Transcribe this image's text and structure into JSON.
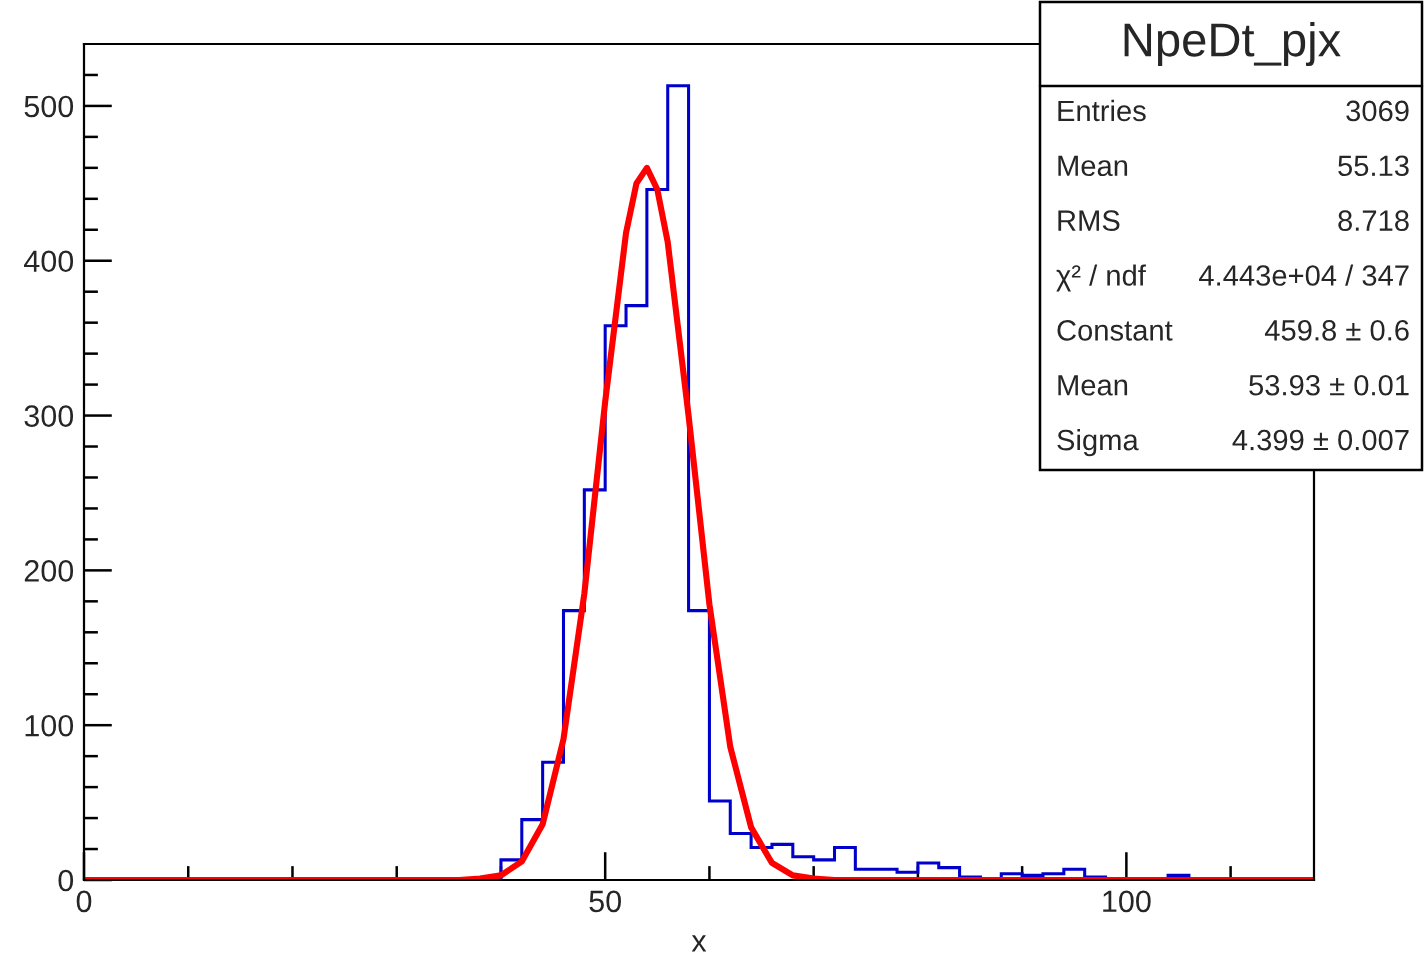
{
  "chart_data": {
    "type": "histogram",
    "title": "NpeDt_pjx",
    "xlabel": "x",
    "xlim": [
      0,
      118
    ],
    "xticks": [
      0,
      {
        "value": 10,
        "label": null
      },
      {
        "value": 20,
        "label": null
      },
      {
        "value": 30,
        "label": null
      },
      {
        "value": 40,
        "label": null
      },
      50,
      {
        "value": 60,
        "label": null
      },
      {
        "value": 70,
        "label": null
      },
      {
        "value": 80,
        "label": null
      },
      {
        "value": 90,
        "label": null
      },
      100,
      {
        "value": 110,
        "label": null
      }
    ],
    "ylim": [
      0,
      540
    ],
    "yticks": [
      0,
      {
        "value": 20,
        "label": null
      },
      {
        "value": 40,
        "label": null
      },
      {
        "value": 60,
        "label": null
      },
      {
        "value": 80,
        "label": null
      },
      100,
      {
        "value": 120,
        "label": null
      },
      {
        "value": 140,
        "label": null
      },
      {
        "value": 160,
        "label": null
      },
      {
        "value": 180,
        "label": null
      },
      200,
      {
        "value": 220,
        "label": null
      },
      {
        "value": 240,
        "label": null
      },
      {
        "value": 260,
        "label": null
      },
      {
        "value": 280,
        "label": null
      },
      300,
      {
        "value": 320,
        "label": null
      },
      {
        "value": 340,
        "label": null
      },
      {
        "value": 360,
        "label": null
      },
      {
        "value": 380,
        "label": null
      },
      400,
      {
        "value": 420,
        "label": null
      },
      {
        "value": 440,
        "label": null
      },
      {
        "value": 460,
        "label": null
      },
      {
        "value": 480,
        "label": null
      },
      500,
      {
        "value": 520,
        "label": null
      }
    ],
    "grid": false,
    "legend": false,
    "annotations": [
      "Entries",
      "3069",
      "Mean",
      "55.13",
      "RMS",
      "8.718",
      "χ² / ndf",
      "4.443e+04 / 347",
      "Constant",
      "459.8 ± 0.6",
      "Mean",
      "53.93 ± 0.01",
      "Sigma",
      "4.399 ± 0.007"
    ],
    "series": [
      {
        "color": "#0000cc",
        "bins": [
          0,
          2,
          4,
          6,
          8,
          10,
          12,
          14,
          16,
          18,
          20,
          22,
          24,
          26,
          28,
          30,
          32,
          34,
          36,
          38,
          40,
          42,
          44,
          46,
          48,
          50,
          52,
          54,
          56,
          58,
          60,
          62,
          64,
          66,
          68,
          70,
          72,
          74,
          76,
          78,
          80,
          82,
          84,
          86,
          88,
          90,
          92,
          94,
          96,
          98,
          100,
          102,
          104,
          106,
          108,
          110,
          112,
          114,
          116,
          118
        ],
        "values": [
          0,
          0,
          0,
          0,
          0,
          0,
          0,
          0,
          0,
          0,
          0,
          0,
          0,
          0,
          0,
          0,
          0,
          0,
          0,
          0,
          13,
          39,
          76,
          174,
          252,
          358,
          371,
          446,
          513,
          174,
          51,
          30,
          21,
          23,
          15,
          13,
          21,
          7,
          7,
          5,
          11,
          8,
          2,
          1,
          4,
          3,
          4,
          7,
          2,
          0,
          0,
          0,
          3,
          0,
          0,
          1,
          1,
          1,
          0
        ]
      },
      {
        "type": "line",
        "color": "#ff0000",
        "x": [
          0,
          36,
          38,
          40,
          42,
          44,
          46,
          48,
          50,
          52,
          53,
          54,
          55,
          56,
          58,
          60,
          62,
          64,
          66,
          68,
          70,
          72,
          118
        ],
        "values": [
          0,
          0,
          1,
          3,
          12,
          36,
          91,
          185,
          309,
          418,
          450,
          460,
          446,
          412,
          300,
          178,
          86,
          34,
          11,
          3,
          1,
          0,
          0
        ]
      }
    ]
  }
}
